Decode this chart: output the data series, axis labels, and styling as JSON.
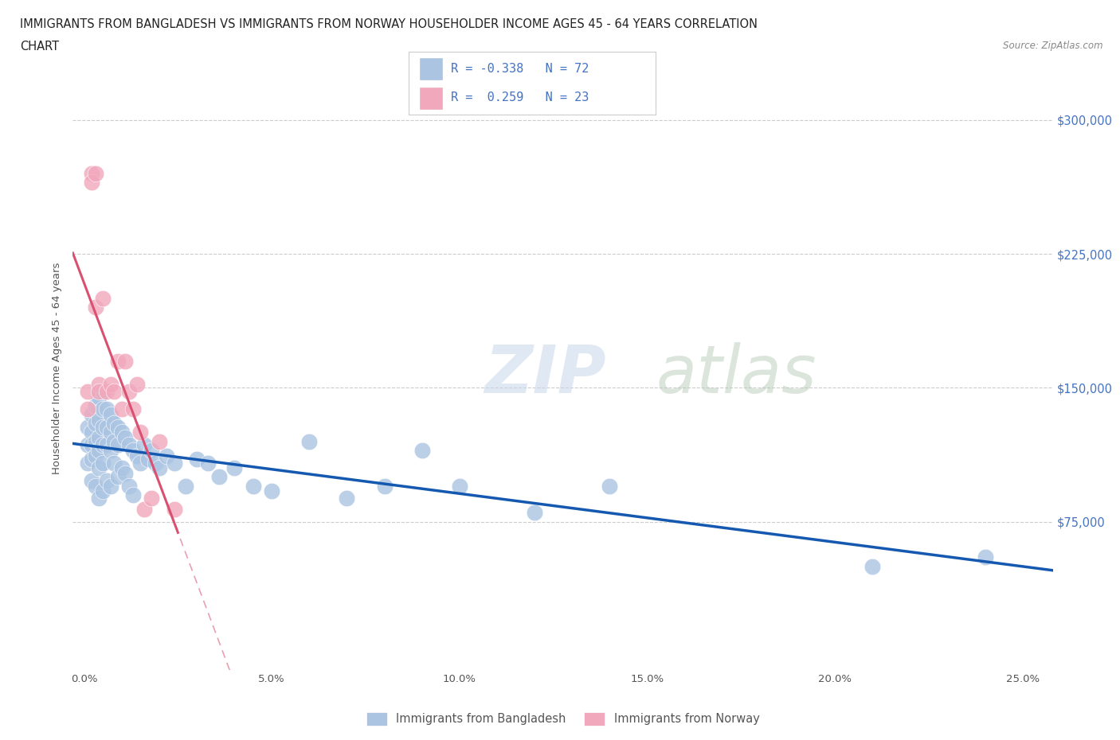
{
  "title_line1": "IMMIGRANTS FROM BANGLADESH VS IMMIGRANTS FROM NORWAY HOUSEHOLDER INCOME AGES 45 - 64 YEARS CORRELATION",
  "title_line2": "CHART",
  "source_text": "Source: ZipAtlas.com",
  "ylabel": "Householder Income Ages 45 - 64 years",
  "yticks": [
    0,
    75000,
    150000,
    225000,
    300000
  ],
  "ytick_labels": [
    "",
    "$75,000",
    "$150,000",
    "$225,000",
    "$300,000"
  ],
  "xticks": [
    0.0,
    0.05,
    0.1,
    0.15,
    0.2,
    0.25
  ],
  "xtick_labels": [
    "0.0%",
    "5.0%",
    "10.0%",
    "15.0%",
    "20.0%",
    "25.0%"
  ],
  "xlim": [
    -0.003,
    0.258
  ],
  "ylim": [
    -8000,
    330000
  ],
  "bangladesh_color": "#aac4e2",
  "norway_color": "#f2a8bc",
  "bangladesh_line_color": "#1558b0",
  "norway_line_color": "#d95070",
  "norway_dash_color": "#e8a0b0",
  "text_color_blue": "#4472c4",
  "legend_R_bangladesh": "-0.338",
  "legend_N_bangladesh": "72",
  "legend_R_norway": "0.259",
  "legend_N_norway": "23",
  "bangladesh_x": [
    0.001,
    0.001,
    0.001,
    0.002,
    0.002,
    0.002,
    0.002,
    0.002,
    0.003,
    0.003,
    0.003,
    0.003,
    0.003,
    0.004,
    0.004,
    0.004,
    0.004,
    0.004,
    0.004,
    0.005,
    0.005,
    0.005,
    0.005,
    0.005,
    0.005,
    0.006,
    0.006,
    0.006,
    0.006,
    0.007,
    0.007,
    0.007,
    0.007,
    0.008,
    0.008,
    0.008,
    0.009,
    0.009,
    0.009,
    0.01,
    0.01,
    0.011,
    0.011,
    0.012,
    0.012,
    0.013,
    0.013,
    0.014,
    0.015,
    0.016,
    0.017,
    0.018,
    0.019,
    0.02,
    0.022,
    0.024,
    0.027,
    0.03,
    0.033,
    0.036,
    0.04,
    0.045,
    0.05,
    0.06,
    0.07,
    0.08,
    0.09,
    0.1,
    0.12,
    0.14,
    0.21,
    0.24
  ],
  "bangladesh_y": [
    128000,
    118000,
    108000,
    135000,
    125000,
    118000,
    110000,
    98000,
    140000,
    130000,
    120000,
    112000,
    95000,
    145000,
    132000,
    122000,
    115000,
    105000,
    88000,
    148000,
    138000,
    128000,
    118000,
    108000,
    92000,
    138000,
    128000,
    118000,
    98000,
    135000,
    125000,
    115000,
    95000,
    130000,
    120000,
    108000,
    128000,
    118000,
    100000,
    125000,
    105000,
    122000,
    102000,
    118000,
    95000,
    115000,
    90000,
    112000,
    108000,
    118000,
    110000,
    115000,
    108000,
    105000,
    112000,
    108000,
    95000,
    110000,
    108000,
    100000,
    105000,
    95000,
    92000,
    120000,
    88000,
    95000,
    115000,
    95000,
    80000,
    95000,
    50000,
    55000
  ],
  "norway_x": [
    0.001,
    0.001,
    0.002,
    0.002,
    0.003,
    0.003,
    0.004,
    0.004,
    0.005,
    0.006,
    0.007,
    0.008,
    0.009,
    0.01,
    0.011,
    0.012,
    0.013,
    0.014,
    0.015,
    0.016,
    0.018,
    0.02,
    0.024
  ],
  "norway_y": [
    148000,
    138000,
    270000,
    265000,
    270000,
    195000,
    152000,
    148000,
    200000,
    148000,
    152000,
    148000,
    165000,
    138000,
    165000,
    148000,
    138000,
    152000,
    125000,
    82000,
    88000,
    120000,
    82000
  ]
}
